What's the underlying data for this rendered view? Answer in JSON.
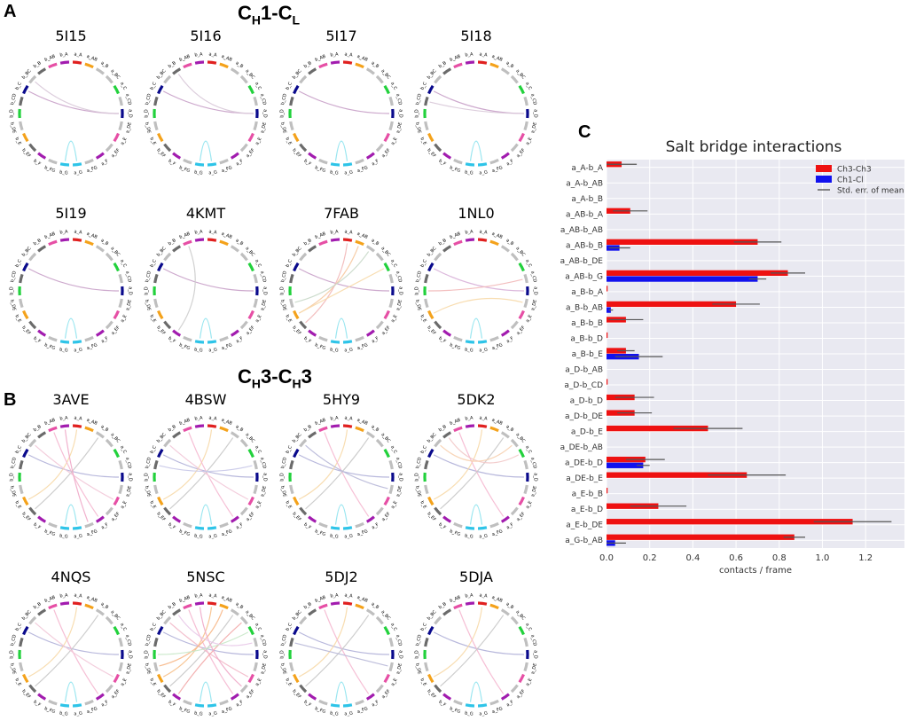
{
  "figure": {
    "panel_a_letter": "A",
    "panel_b_letter": "B",
    "panel_c_letter": "C",
    "panel_a_title": {
      "prefix": "C",
      "sub1": "H",
      "mid": "1-C",
      "sub2": "L"
    },
    "panel_b_title": {
      "prefix": "C",
      "sub1": "H",
      "mid": "3-C",
      "sub2": "H",
      "suffix": "3"
    }
  },
  "segments": [
    {
      "label": "a_A",
      "color": "#e0201f"
    },
    {
      "label": "a_AB",
      "color": "#f4a21b"
    },
    {
      "label": "a_B",
      "color": "#bfbfbf"
    },
    {
      "label": "a_BC",
      "color": "#bfbfbf"
    },
    {
      "label": "a_C",
      "color": "#22d13c"
    },
    {
      "label": "a_CD",
      "color": "#bfbfbf"
    },
    {
      "label": "a_D",
      "color": "#0a0a8c"
    },
    {
      "label": "a_DE",
      "color": "#bfbfbf"
    },
    {
      "label": "a_E",
      "color": "#e64fa5"
    },
    {
      "label": "a_EF",
      "color": "#bfbfbf"
    },
    {
      "label": "a_F",
      "color": "#a21caf"
    },
    {
      "label": "a_FG",
      "color": "#bfbfbf"
    },
    {
      "label": "a_G",
      "color": "#2ec4e8"
    },
    {
      "label": "b_G",
      "color": "#2ec4e8"
    },
    {
      "label": "b_FG",
      "color": "#bfbfbf"
    },
    {
      "label": "b_F",
      "color": "#a21caf"
    },
    {
      "label": "b_EF",
      "color": "#6b6b6b"
    },
    {
      "label": "b_E",
      "color": "#f4a21b"
    },
    {
      "label": "b_DE",
      "color": "#bfbfbf"
    },
    {
      "label": "b_D",
      "color": "#22d13c"
    },
    {
      "label": "b_CD",
      "color": "#6b6b6b"
    },
    {
      "label": "b_C",
      "color": "#0a0a8c"
    },
    {
      "label": "b_BC",
      "color": "#bfbfbf"
    },
    {
      "label": "b_B",
      "color": "#6b6b6b"
    },
    {
      "label": "b_AB",
      "color": "#e64fa5"
    },
    {
      "label": "b_A",
      "color": "#a21caf"
    }
  ],
  "circle_plots": [
    {
      "name": "5I15",
      "links": [
        [
          6,
          21,
          "#c8a0c8"
        ],
        [
          12,
          13,
          "#8fe3ee"
        ],
        [
          6,
          22,
          "#d8c8d8"
        ]
      ]
    },
    {
      "name": "5I16",
      "links": [
        [
          6,
          21,
          "#c8a0c8"
        ],
        [
          12,
          13,
          "#8fe3ee"
        ],
        [
          6,
          23,
          "#d8c8d8"
        ]
      ]
    },
    {
      "name": "5I17",
      "links": [
        [
          6,
          21,
          "#c8a0c8"
        ],
        [
          12,
          13,
          "#8fe3ee"
        ]
      ]
    },
    {
      "name": "5I18",
      "links": [
        [
          6,
          21,
          "#c8a0c8"
        ],
        [
          12,
          13,
          "#8fe3ee"
        ],
        [
          6,
          20,
          "#d8c8d8"
        ]
      ]
    },
    {
      "name": "5I19",
      "links": [
        [
          6,
          21,
          "#c8a0c8"
        ],
        [
          12,
          13,
          "#8fe3ee"
        ]
      ]
    },
    {
      "name": "4KMT",
      "links": [
        [
          6,
          21,
          "#c8a0c8"
        ],
        [
          12,
          13,
          "#8fe3ee"
        ],
        [
          24,
          15,
          "#cccccc"
        ]
      ]
    },
    {
      "name": "7FAB",
      "links": [
        [
          6,
          21,
          "#c8a0c8"
        ],
        [
          12,
          13,
          "#8fe3ee"
        ],
        [
          1,
          17,
          "#f6c9a0"
        ],
        [
          0,
          16,
          "#f2b8b8"
        ],
        [
          2,
          18,
          "#c8d8c8"
        ],
        [
          4,
          17,
          "#f7d9a8"
        ]
      ]
    },
    {
      "name": "1NL0",
      "links": [
        [
          6,
          21,
          "#d8b0d8"
        ],
        [
          12,
          13,
          "#8fe3ee"
        ],
        [
          5,
          19,
          "#f2b8b8"
        ],
        [
          7,
          17,
          "#f7d9a8"
        ]
      ]
    },
    {
      "name": "3AVE",
      "links": [
        [
          6,
          21,
          "#b0b0d8"
        ],
        [
          12,
          13,
          "#8fe3ee"
        ],
        [
          0,
          17,
          "#f7d9a8"
        ],
        [
          10,
          24,
          "#f5b8d0"
        ],
        [
          2,
          16,
          "#c8c8c8"
        ],
        [
          8,
          22,
          "#f2c8d8"
        ],
        [
          11,
          25,
          "#f0a8c8"
        ]
      ]
    },
    {
      "name": "4BSW",
      "links": [
        [
          6,
          21,
          "#b0b0d8"
        ],
        [
          12,
          13,
          "#8fe3ee"
        ],
        [
          0,
          17,
          "#f7d9a8"
        ],
        [
          10,
          24,
          "#f5b8d0"
        ],
        [
          2,
          16,
          "#c8c8c8"
        ],
        [
          8,
          22,
          "#f2c8d8"
        ],
        [
          5,
          20,
          "#c8c8e8"
        ]
      ]
    },
    {
      "name": "5HY9",
      "links": [
        [
          6,
          21,
          "#b0b0d8"
        ],
        [
          12,
          13,
          "#8fe3ee"
        ],
        [
          0,
          17,
          "#f7d9a8"
        ],
        [
          10,
          24,
          "#f5b8d0"
        ],
        [
          2,
          16,
          "#c8c8c8"
        ],
        [
          7,
          22,
          "#b8b8d8"
        ]
      ]
    },
    {
      "name": "5DK2",
      "links": [
        [
          6,
          21,
          "#b0b0d8"
        ],
        [
          12,
          13,
          "#8fe3ee"
        ],
        [
          0,
          17,
          "#f7d9a8"
        ],
        [
          10,
          24,
          "#f5b8d0"
        ],
        [
          2,
          16,
          "#c8c8c8"
        ],
        [
          4,
          23,
          "#f2c8c8"
        ],
        [
          3,
          22,
          "#f7d0b0"
        ]
      ]
    },
    {
      "name": "4NQS",
      "links": [
        [
          6,
          21,
          "#b0b0d8"
        ],
        [
          12,
          13,
          "#8fe3ee"
        ],
        [
          0,
          17,
          "#f7d9a8"
        ],
        [
          10,
          24,
          "#f5b8d0"
        ],
        [
          2,
          16,
          "#c8c8c8"
        ],
        [
          8,
          22,
          "#f2c8d8"
        ]
      ]
    },
    {
      "name": "5NSC",
      "links": [
        [
          6,
          21,
          "#b0b0d8"
        ],
        [
          12,
          13,
          "#8fe3ee"
        ],
        [
          0,
          17,
          "#f7c08a"
        ],
        [
          10,
          24,
          "#f5b8d0"
        ],
        [
          2,
          16,
          "#c8c8c8"
        ],
        [
          8,
          22,
          "#f2b8c8"
        ],
        [
          1,
          18,
          "#f7b888"
        ],
        [
          3,
          15,
          "#f2a8a8"
        ],
        [
          4,
          19,
          "#c8e8c8"
        ],
        [
          9,
          25,
          "#f0a8c8"
        ],
        [
          5,
          23,
          "#e8c8e8"
        ]
      ]
    },
    {
      "name": "5DJ2",
      "links": [
        [
          6,
          21,
          "#b0b0d8"
        ],
        [
          12,
          13,
          "#8fe3ee"
        ],
        [
          0,
          17,
          "#f7d9a8"
        ],
        [
          10,
          24,
          "#f5b8d0"
        ],
        [
          2,
          16,
          "#c8c8c8"
        ],
        [
          7,
          20,
          "#b8b8d8"
        ]
      ]
    },
    {
      "name": "5DJA",
      "links": [
        [
          6,
          21,
          "#b0b0d8"
        ],
        [
          12,
          13,
          "#8fe3ee"
        ],
        [
          0,
          17,
          "#f7d9a8"
        ],
        [
          10,
          24,
          "#f5b8d0"
        ],
        [
          2,
          16,
          "#c8c8c8"
        ]
      ]
    }
  ],
  "chart_data": {
    "type": "bar",
    "orientation": "horizontal",
    "title": "Salt bridge interactions",
    "xlabel": "contacts / frame",
    "ylabel": "",
    "xlim": [
      0,
      1.38
    ],
    "xticks": [
      "0.0",
      "0.2",
      "0.4",
      "0.6",
      "0.8",
      "1.0",
      "1.2"
    ],
    "xtick_values": [
      0,
      0.2,
      0.4,
      0.6,
      0.8,
      1.0,
      1.2
    ],
    "grid": true,
    "legend_position": "top-right",
    "error_label": "Std. err. of mean",
    "categories": [
      "a_A-b_A",
      "a_A-b_AB",
      "a_A-b_B",
      "a_AB-b_A",
      "a_AB-b_AB",
      "a_AB-b_B",
      "a_AB-b_DE",
      "a_AB-b_G",
      "a_B-b_A",
      "a_B-b_AB",
      "a_B-b_B",
      "a_B-b_D",
      "a_B-b_E",
      "a_D-b_AB",
      "a_D-b_CD",
      "a_D-b_D",
      "a_D-b_DE",
      "a_D-b_E",
      "a_DE-b_AB",
      "a_DE-b_D",
      "a_DE-b_E",
      "a_E-b_B",
      "a_E-b_D",
      "a_E-b_DE",
      "a_G-b_AB"
    ],
    "series": [
      {
        "name": "Ch3-Ch3",
        "color": "#ee1111",
        "values": [
          0.07,
          0,
          0,
          0.11,
          0,
          0.7,
          0,
          0.84,
          0.005,
          0.6,
          0.09,
          0.005,
          0.09,
          0,
          0.005,
          0.13,
          0.13,
          0.47,
          0,
          0.18,
          0.65,
          0.005,
          0.24,
          1.14,
          0.87
        ],
        "errors": [
          0.07,
          0,
          0,
          0.08,
          0,
          0.11,
          0,
          0.08,
          0,
          0.11,
          0.08,
          0,
          0.04,
          0,
          0,
          0.09,
          0.08,
          0.16,
          0,
          0.09,
          0.18,
          0,
          0.13,
          0.18,
          0.05
        ]
      },
      {
        "name": "Ch1-Cl",
        "color": "#1111ee",
        "values": [
          0,
          0,
          0,
          0,
          0,
          0.06,
          0,
          0.7,
          0,
          0.02,
          0,
          0,
          0.15,
          0,
          0,
          0,
          0,
          0,
          0,
          0.17,
          0,
          0,
          0,
          0,
          0.04
        ],
        "errors": [
          0,
          0,
          0,
          0,
          0,
          0.05,
          0,
          0.04,
          0,
          0.01,
          0,
          0,
          0.11,
          0,
          0,
          0,
          0,
          0,
          0,
          0.03,
          0,
          0,
          0,
          0,
          0.05
        ]
      }
    ]
  }
}
